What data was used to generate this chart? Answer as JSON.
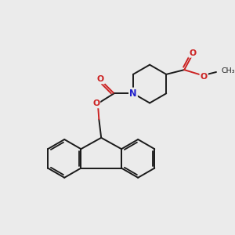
{
  "bg_color": "#ebebeb",
  "bond_color": "#1a1a1a",
  "bond_width": 1.4,
  "N_color": "#2222cc",
  "O_color": "#cc2222",
  "figsize": [
    3.0,
    3.0
  ],
  "dpi": 100,
  "xlim": [
    0,
    10
  ],
  "ylim": [
    0,
    10
  ]
}
